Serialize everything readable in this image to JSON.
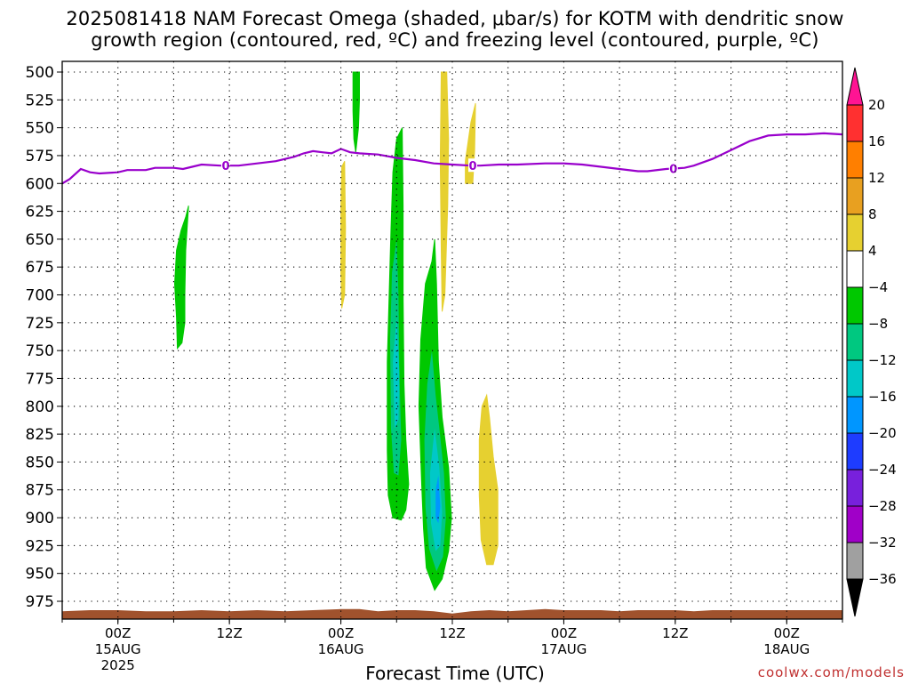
{
  "title_line1": "2025081418 NAM Forecast Omega (shaded, μbar/s) for KOTM with dendritic snow",
  "title_line2": "growth region (contoured, red, ºC) and freezing level (contoured, purple, ºC)",
  "x_axis_title": "Forecast Time (UTC)",
  "credit": "coolwx.com/models",
  "chart_data": {
    "type": "contour",
    "y_axis": {
      "unit": "hPa",
      "ticks": [
        500,
        525,
        550,
        575,
        600,
        625,
        650,
        675,
        700,
        725,
        750,
        775,
        800,
        825,
        850,
        875,
        900,
        925,
        950,
        975
      ],
      "range": [
        500,
        975
      ]
    },
    "x_axis": {
      "unit": "forecast hours",
      "ticks": [
        {
          "hour": 6,
          "label": "00Z",
          "date": "15AUG",
          "year": "2025"
        },
        {
          "hour": 18,
          "label": "12Z",
          "date": "",
          "year": ""
        },
        {
          "hour": 30,
          "label": "00Z",
          "date": "16AUG",
          "year": ""
        },
        {
          "hour": 42,
          "label": "12Z",
          "date": "",
          "year": ""
        },
        {
          "hour": 54,
          "label": "00Z",
          "date": "17AUG",
          "year": ""
        },
        {
          "hour": 66,
          "label": "12Z",
          "date": "",
          "year": ""
        },
        {
          "hour": 78,
          "label": "00Z",
          "date": "18AUG",
          "year": ""
        }
      ],
      "range": [
        0,
        84
      ]
    },
    "colorbar": {
      "levels": [
        20,
        16,
        12,
        8,
        4,
        -4,
        -8,
        -12,
        -16,
        -20,
        -24,
        -28,
        -32,
        -36
      ],
      "colors": [
        "#ff1493",
        "#ff3030",
        "#ff7f00",
        "#e8a020",
        "#e6d030",
        "#ffffff",
        "#00c800",
        "#00c880",
        "#00c8c8",
        "#0096ff",
        "#1e3cff",
        "#7820dc",
        "#a000c8",
        "#a0a0a0",
        "#000000"
      ]
    },
    "freezing_level": {
      "label": "0",
      "color": "#9900cc",
      "points": [
        [
          0,
          600
        ],
        [
          0.8,
          596
        ],
        [
          2,
          587
        ],
        [
          3,
          590
        ],
        [
          4,
          591
        ],
        [
          6,
          590
        ],
        [
          7,
          588
        ],
        [
          9,
          588
        ],
        [
          10,
          586
        ],
        [
          12,
          586
        ],
        [
          13,
          587
        ],
        [
          14,
          585
        ],
        [
          15,
          583
        ],
        [
          17,
          584
        ],
        [
          18,
          584
        ],
        [
          19,
          584
        ],
        [
          21,
          582
        ],
        [
          23,
          580
        ],
        [
          25,
          576
        ],
        [
          26,
          573
        ],
        [
          27,
          571
        ],
        [
          28,
          572
        ],
        [
          29,
          573
        ],
        [
          30,
          569
        ],
        [
          31,
          572
        ],
        [
          32,
          573
        ],
        [
          34,
          574
        ],
        [
          36,
          577
        ],
        [
          38,
          579
        ],
        [
          40,
          582
        ],
        [
          42,
          583
        ],
        [
          44,
          584
        ],
        [
          45,
          584
        ],
        [
          47,
          583
        ],
        [
          49,
          583
        ],
        [
          52,
          582
        ],
        [
          54,
          582
        ],
        [
          56,
          583
        ],
        [
          58,
          585
        ],
        [
          60,
          587
        ],
        [
          62,
          589
        ],
        [
          63,
          589
        ],
        [
          65,
          587
        ],
        [
          67,
          586
        ],
        [
          68,
          584
        ],
        [
          70,
          578
        ],
        [
          72,
          570
        ],
        [
          74,
          562
        ],
        [
          76,
          557
        ],
        [
          78,
          556
        ],
        [
          80,
          556
        ],
        [
          82,
          555
        ],
        [
          84,
          556
        ]
      ]
    },
    "shaded_regions": [
      {
        "level": "-4 to -8",
        "color": "#00c800",
        "points": [
          [
            12.1,
            690
          ],
          [
            12.3,
            660
          ],
          [
            12.8,
            642
          ],
          [
            13.3,
            630
          ],
          [
            13.6,
            620
          ],
          [
            13.3,
            660
          ],
          [
            13.2,
            700
          ],
          [
            13.2,
            725
          ],
          [
            12.9,
            743
          ],
          [
            12.4,
            748
          ],
          [
            12.3,
            720
          ]
        ]
      },
      {
        "level": "-4 to -8",
        "color": "#00c800",
        "points": [
          [
            31.3,
            500
          ],
          [
            32.0,
            500
          ],
          [
            32.0,
            525
          ],
          [
            31.9,
            550
          ],
          [
            31.7,
            565
          ],
          [
            31.6,
            572
          ],
          [
            31.4,
            560
          ],
          [
            31.3,
            535
          ]
        ]
      },
      {
        "level": "-4 to -8",
        "color": "#00c800",
        "points": [
          [
            35.0,
            840
          ],
          [
            35.0,
            760
          ],
          [
            35.2,
            700
          ],
          [
            35.4,
            640
          ],
          [
            35.6,
            590
          ],
          [
            36.0,
            560
          ],
          [
            36.6,
            550
          ],
          [
            36.7,
            620
          ],
          [
            36.7,
            700
          ],
          [
            36.8,
            780
          ],
          [
            37.0,
            830
          ],
          [
            37.3,
            870
          ],
          [
            37.0,
            893
          ],
          [
            36.5,
            902
          ],
          [
            35.6,
            900
          ],
          [
            35.1,
            880
          ]
        ]
      },
      {
        "level": "-4 to -8",
        "color": "#00c800",
        "points": [
          [
            38.4,
            800
          ],
          [
            38.6,
            740
          ],
          [
            39.1,
            690
          ],
          [
            39.8,
            670
          ],
          [
            40.1,
            650
          ],
          [
            40.3,
            690
          ],
          [
            40.5,
            760
          ],
          [
            40.9,
            810
          ],
          [
            41.6,
            855
          ],
          [
            41.9,
            900
          ],
          [
            41.6,
            930
          ],
          [
            40.9,
            955
          ],
          [
            40.1,
            965
          ],
          [
            39.2,
            945
          ],
          [
            38.9,
            910
          ],
          [
            38.7,
            870
          ]
        ]
      },
      {
        "level": "4 to 8",
        "color": "#e6d030",
        "points": [
          [
            30.1,
            585
          ],
          [
            30.4,
            580
          ],
          [
            30.5,
            640
          ],
          [
            30.4,
            700
          ],
          [
            30.1,
            712
          ],
          [
            30.0,
            680
          ],
          [
            30.0,
            620
          ]
        ]
      },
      {
        "level": "4 to 8",
        "color": "#e6d030",
        "points": [
          [
            40.8,
            500
          ],
          [
            41.4,
            500
          ],
          [
            41.6,
            560
          ],
          [
            41.5,
            620
          ],
          [
            41.2,
            700
          ],
          [
            40.9,
            715
          ],
          [
            40.8,
            660
          ],
          [
            40.7,
            580
          ]
        ]
      },
      {
        "level": "4 to 8",
        "color": "#e6d030",
        "points": [
          [
            43.4,
            580
          ],
          [
            44.0,
            545
          ],
          [
            44.5,
            528
          ],
          [
            44.4,
            570
          ],
          [
            44.2,
            600
          ],
          [
            43.4,
            600
          ]
        ]
      },
      {
        "level": "4 to 8",
        "color": "#e6d030",
        "points": [
          [
            44.9,
            830
          ],
          [
            45.2,
            800
          ],
          [
            45.7,
            790
          ],
          [
            46.0,
            810
          ],
          [
            46.4,
            845
          ],
          [
            46.9,
            875
          ],
          [
            46.9,
            925
          ],
          [
            46.4,
            942
          ],
          [
            45.7,
            942
          ],
          [
            45.1,
            920
          ],
          [
            44.9,
            880
          ]
        ]
      }
    ],
    "inner_regions": [
      {
        "level": "-8 to -12",
        "color": "#00c880",
        "points": [
          [
            35.3,
            740
          ],
          [
            35.5,
            680
          ],
          [
            36.0,
            650
          ],
          [
            36.2,
            700
          ],
          [
            36.3,
            770
          ],
          [
            36.5,
            830
          ],
          [
            36.2,
            862
          ],
          [
            35.7,
            860
          ],
          [
            35.4,
            820
          ]
        ]
      },
      {
        "level": "-8 to -12",
        "color": "#00c880",
        "points": [
          [
            39.0,
            830
          ],
          [
            39.3,
            780
          ],
          [
            39.8,
            750
          ],
          [
            40.2,
            790
          ],
          [
            40.6,
            820
          ],
          [
            41.1,
            860
          ],
          [
            41.3,
            900
          ],
          [
            41.0,
            935
          ],
          [
            40.3,
            948
          ],
          [
            39.5,
            928
          ],
          [
            39.1,
            890
          ]
        ]
      },
      {
        "level": "-12 to -16",
        "color": "#00c8c8",
        "points": [
          [
            35.6,
            760
          ],
          [
            36.0,
            720
          ],
          [
            36.3,
            770
          ],
          [
            36.2,
            812
          ],
          [
            35.8,
            820
          ]
        ]
      },
      {
        "level": "-12 to -16",
        "color": "#00c8c8",
        "points": [
          [
            39.6,
            860
          ],
          [
            40.1,
            820
          ],
          [
            40.6,
            855
          ],
          [
            40.9,
            895
          ],
          [
            40.7,
            925
          ],
          [
            40.2,
            930
          ],
          [
            39.7,
            905
          ]
        ]
      },
      {
        "level": "-16 to -20",
        "color": "#0096ff",
        "points": [
          [
            40.2,
            875
          ],
          [
            40.5,
            862
          ],
          [
            40.7,
            890
          ],
          [
            40.5,
            905
          ],
          [
            40.2,
            900
          ]
        ]
      }
    ],
    "terrain": {
      "color": "#a0522d",
      "top_pressure": 983,
      "points": [
        [
          0,
          984
        ],
        [
          3,
          983
        ],
        [
          6,
          983
        ],
        [
          9,
          984
        ],
        [
          12,
          984
        ],
        [
          15,
          983
        ],
        [
          18,
          984
        ],
        [
          21,
          983
        ],
        [
          24,
          984
        ],
        [
          27,
          983
        ],
        [
          30,
          982
        ],
        [
          32,
          982
        ],
        [
          34,
          984
        ],
        [
          36,
          983
        ],
        [
          38,
          983
        ],
        [
          40,
          984
        ],
        [
          42,
          986
        ],
        [
          44,
          984
        ],
        [
          46,
          983
        ],
        [
          48,
          984
        ],
        [
          50,
          983
        ],
        [
          52,
          982
        ],
        [
          54,
          983
        ],
        [
          56,
          983
        ],
        [
          58,
          983
        ],
        [
          60,
          984
        ],
        [
          62,
          983
        ],
        [
          64,
          983
        ],
        [
          66,
          983
        ],
        [
          68,
          984
        ],
        [
          70,
          983
        ],
        [
          72,
          983
        ],
        [
          74,
          983
        ],
        [
          76,
          983
        ],
        [
          78,
          983
        ],
        [
          80,
          983
        ],
        [
          82,
          983
        ],
        [
          84,
          983
        ]
      ]
    }
  }
}
